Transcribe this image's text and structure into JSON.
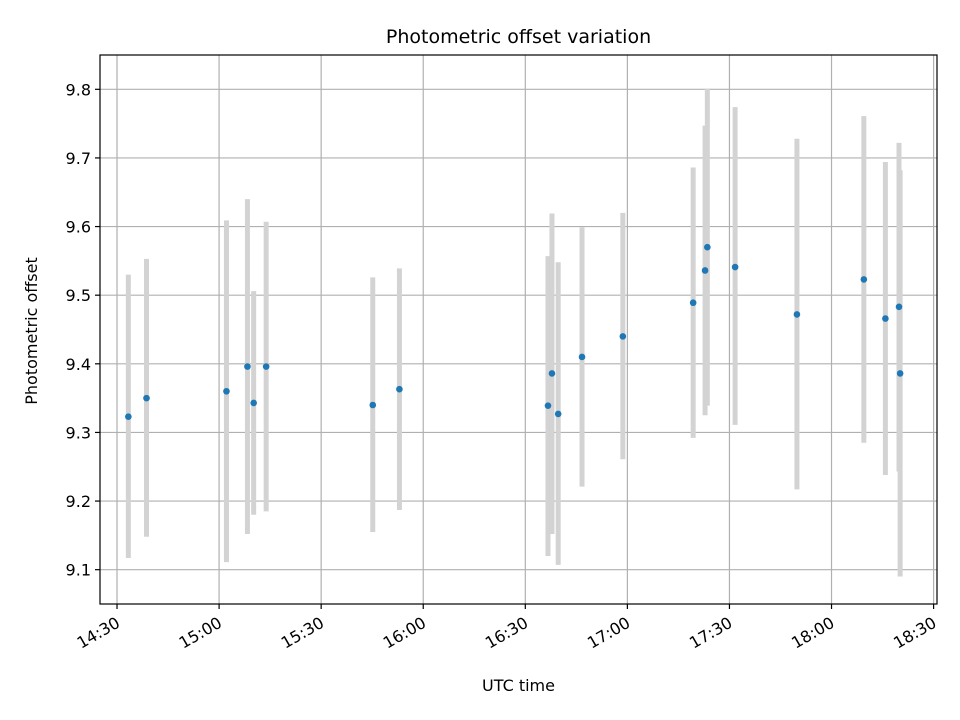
{
  "chart_data": {
    "type": "scatter",
    "title": "Photometric offset variation",
    "xlabel": "UTC time",
    "ylabel": "Photometric offset",
    "grid": true,
    "xlim": [
      "14:25",
      "18:31"
    ],
    "ylim": [
      9.05,
      9.85
    ],
    "x_ticks": [
      "14:30",
      "15:00",
      "15:30",
      "16:00",
      "16:30",
      "17:00",
      "17:30",
      "18:00",
      "18:30"
    ],
    "y_ticks": [
      "9.1",
      "9.2",
      "9.3",
      "9.4",
      "9.5",
      "9.6",
      "9.7",
      "9.8"
    ],
    "colors": {
      "points": "#1f77b4",
      "errorbars": "#d3d3d3",
      "grid": "#b0b0b0"
    },
    "series": [
      {
        "points": [
          {
            "x": "14:33:20",
            "y": 9.323,
            "ylow": 9.117,
            "yhigh": 9.53
          },
          {
            "x": "14:38:40",
            "y": 9.35,
            "ylow": 9.148,
            "yhigh": 9.553
          },
          {
            "x": "15:02:10",
            "y": 9.36,
            "ylow": 9.111,
            "yhigh": 9.609
          },
          {
            "x": "15:08:20",
            "y": 9.396,
            "ylow": 9.152,
            "yhigh": 9.64
          },
          {
            "x": "15:10:10",
            "y": 9.343,
            "ylow": 9.18,
            "yhigh": 9.506
          },
          {
            "x": "15:13:50",
            "y": 9.396,
            "ylow": 9.185,
            "yhigh": 9.607
          },
          {
            "x": "15:45:10",
            "y": 9.34,
            "ylow": 9.155,
            "yhigh": 9.526
          },
          {
            "x": "15:53:00",
            "y": 9.363,
            "ylow": 9.187,
            "yhigh": 9.539
          },
          {
            "x": "16:36:40",
            "y": 9.339,
            "ylow": 9.12,
            "yhigh": 9.557
          },
          {
            "x": "16:37:50",
            "y": 9.386,
            "ylow": 9.152,
            "yhigh": 9.619
          },
          {
            "x": "16:39:40",
            "y": 9.327,
            "ylow": 9.107,
            "yhigh": 9.548
          },
          {
            "x": "16:46:40",
            "y": 9.41,
            "ylow": 9.221,
            "yhigh": 9.599
          },
          {
            "x": "16:58:40",
            "y": 9.44,
            "ylow": 9.261,
            "yhigh": 9.62
          },
          {
            "x": "17:19:20",
            "y": 9.489,
            "ylow": 9.292,
            "yhigh": 9.686
          },
          {
            "x": "17:22:50",
            "y": 9.536,
            "ylow": 9.325,
            "yhigh": 9.747
          },
          {
            "x": "17:23:30",
            "y": 9.57,
            "ylow": 9.339,
            "yhigh": 9.801
          },
          {
            "x": "17:31:40",
            "y": 9.541,
            "ylow": 9.311,
            "yhigh": 9.774
          },
          {
            "x": "17:49:50",
            "y": 9.472,
            "ylow": 9.217,
            "yhigh": 9.728
          },
          {
            "x": "18:09:30",
            "y": 9.523,
            "ylow": 9.285,
            "yhigh": 9.761
          },
          {
            "x": "18:15:50",
            "y": 9.466,
            "ylow": 9.238,
            "yhigh": 9.694
          },
          {
            "x": "18:19:50",
            "y": 9.483,
            "ylow": 9.243,
            "yhigh": 9.722
          },
          {
            "x": "18:20:10",
            "y": 9.386,
            "ylow": 9.09,
            "yhigh": 9.682
          }
        ]
      }
    ]
  }
}
